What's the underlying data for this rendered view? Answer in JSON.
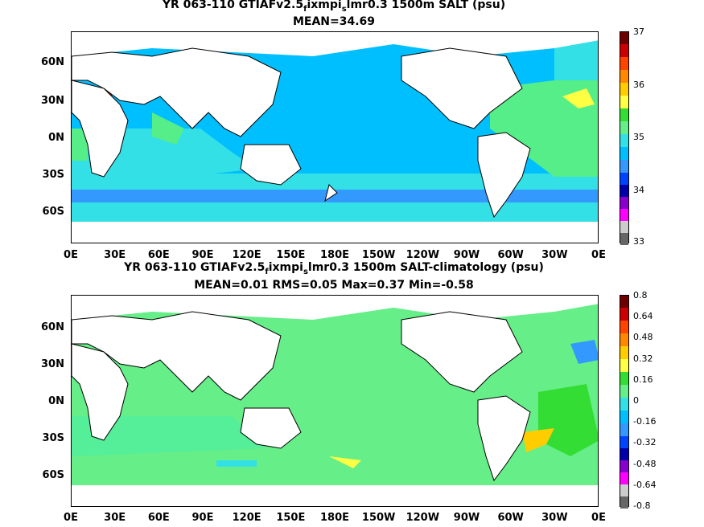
{
  "top": {
    "title_pre": "YR 063-110 GTIAFv2.5",
    "title_sub1": "f",
    "title_mid": "ixmpi",
    "title_sub2": "s",
    "title_post": "lmr0.3 1500m SALT (psu)",
    "subtitle": "MEAN=34.69",
    "colorbar_labels": [
      "37",
      "36",
      "35",
      "34",
      "33"
    ],
    "colors": {
      "ocean_main": "#00bfff",
      "ocean_light": "#33e0e6",
      "ocean_green": "#55ee88",
      "ocean_blue": "#3399ff",
      "land": "#ffffff"
    }
  },
  "bottom": {
    "title_pre": "YR 063-110 GTIAFv2.5",
    "title_sub1": "f",
    "title_mid": "ixmpi",
    "title_sub2": "s",
    "title_post": "lmr0.3 1500m SALT-climatology (psu)",
    "subtitle": "MEAN=0.01   RMS=0.05   Max=0.37   Min=-0.58",
    "colorbar_labels": [
      "0.8",
      "0.64",
      "0.48",
      "0.32",
      "0.16",
      "0",
      "-0.16",
      "-0.32",
      "-0.48",
      "-0.64",
      "-0.8"
    ],
    "colors": {
      "ocean_main": "#66ee88",
      "ocean_alt": "#44dd66",
      "land": "#ffffff"
    }
  },
  "lat_labels": [
    "60N",
    "30N",
    "0N",
    "30S",
    "60S"
  ],
  "lon_labels": [
    "0E",
    "30E",
    "60E",
    "90E",
    "120E",
    "150E",
    "180E",
    "150W",
    "120W",
    "90W",
    "60W",
    "30W",
    "0E"
  ],
  "colorbar_colors": [
    "#6e0000",
    "#cc0000",
    "#ff4400",
    "#ff8800",
    "#ffcc00",
    "#ffff44",
    "#33dd33",
    "#66ee88",
    "#33e0e6",
    "#00bfff",
    "#3399ff",
    "#0044ff",
    "#0000aa",
    "#8800cc",
    "#ff00ff",
    "#cccccc",
    "#666666"
  ]
}
